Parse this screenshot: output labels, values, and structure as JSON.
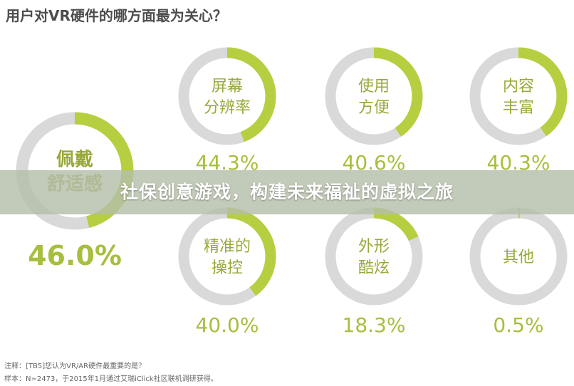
{
  "chart_data": {
    "type": "donut",
    "title": "用户对VR硬件的哪方面最为关心？",
    "categories": [
      "舒适感",
      "屏幕分辨率",
      "使用方便",
      "内容丰富",
      "精准的操控",
      "外形酷炫",
      "其他"
    ],
    "values": [
      46.0,
      44.3,
      40.6,
      40.3,
      40.0,
      18.3,
      0.5
    ],
    "items": [
      {
        "label_lines": [
          "佩戴",
          "舒适感"
        ],
        "value": 46.0,
        "value_text": "46.0%"
      },
      {
        "label_lines": [
          "屏幕",
          "分辨率"
        ],
        "value": 44.3,
        "value_text": "44.3%"
      },
      {
        "label_lines": [
          "使用",
          "方便"
        ],
        "value": 40.6,
        "value_text": "40.6%"
      },
      {
        "label_lines": [
          "内容",
          "丰富"
        ],
        "value": 40.3,
        "value_text": "40.3%"
      },
      {
        "label_lines": [
          "精准的",
          "操控"
        ],
        "value": 40.0,
        "value_text": "40.0%"
      },
      {
        "label_lines": [
          "外形",
          "酷炫"
        ],
        "value": 18.3,
        "value_text": "18.3%"
      },
      {
        "label_lines": [
          "其他"
        ],
        "value": 0.5,
        "value_text": "0.5%"
      }
    ],
    "unit": "%",
    "ylim": [
      0,
      100
    ],
    "colors": {
      "filled": "#b5cf40",
      "track": "#d9d9d9",
      "label": "#9aa83a",
      "value_text": "#a6bf3c"
    }
  },
  "banner": {
    "text": "社保创意游戏，构建未来福祉的虚拟之旅"
  },
  "footnotes": [
    "注释：[TB5]您认为VR/AR硬件最重要的是？",
    "样本：N=2473，于2015年1月通过艾瑞iClick社区联机调研获得。"
  ]
}
